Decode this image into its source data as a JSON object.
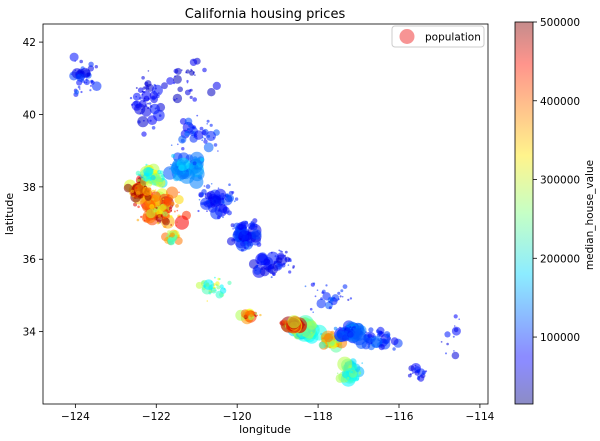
{
  "chart_data": {
    "type": "scatter",
    "title": "California housing prices",
    "xlabel": "longitude",
    "ylabel": "latitude",
    "xlim": [
      -124.8,
      -113.8
    ],
    "ylim": [
      32.0,
      42.5
    ],
    "xticks": [
      -124,
      -122,
      -120,
      -118,
      -116,
      -114
    ],
    "yticks": [
      34,
      36,
      38,
      40,
      42
    ],
    "grid": false,
    "legend": {
      "position": "top-right",
      "entries": [
        "population"
      ],
      "color": "#f47070"
    },
    "colorbar": {
      "label": "median_house_value",
      "range": [
        15000,
        500000
      ],
      "ticks": [
        100000,
        200000,
        300000,
        400000,
        500000
      ],
      "colormap": "jet"
    },
    "regions": [
      {
        "lon": -121.9,
        "lat": 37.4,
        "value": 380000,
        "spread": [
          0.7,
          0.7
        ],
        "count": 110,
        "size": 2.2
      },
      {
        "lon": -122.4,
        "lat": 37.9,
        "value": 420000,
        "spread": [
          0.35,
          0.35
        ],
        "count": 80,
        "size": 2.0
      },
      {
        "lon": -122.1,
        "lat": 38.3,
        "value": 250000,
        "spread": [
          0.5,
          0.4
        ],
        "count": 60,
        "size": 1.8
      },
      {
        "lon": -121.3,
        "lat": 38.5,
        "value": 140000,
        "spread": [
          0.6,
          0.5
        ],
        "count": 80,
        "size": 2.2
      },
      {
        "lon": -120.5,
        "lat": 37.6,
        "value": 90000,
        "spread": [
          0.7,
          0.6
        ],
        "count": 70,
        "size": 1.8
      },
      {
        "lon": -119.8,
        "lat": 36.7,
        "value": 85000,
        "spread": [
          0.5,
          0.5
        ],
        "count": 80,
        "size": 2.0
      },
      {
        "lon": -119.1,
        "lat": 35.9,
        "value": 80000,
        "spread": [
          0.6,
          0.5
        ],
        "count": 60,
        "size": 1.8
      },
      {
        "lon": -122.2,
        "lat": 40.3,
        "value": 70000,
        "spread": [
          0.6,
          1.0
        ],
        "count": 60,
        "size": 1.6
      },
      {
        "lon": -123.8,
        "lat": 41.0,
        "value": 90000,
        "spread": [
          0.5,
          0.8
        ],
        "count": 40,
        "size": 1.4
      },
      {
        "lon": -121.3,
        "lat": 41.0,
        "value": 60000,
        "spread": [
          1.0,
          0.8
        ],
        "count": 35,
        "size": 1.3
      },
      {
        "lon": -121.0,
        "lat": 39.5,
        "value": 100000,
        "spread": [
          0.8,
          0.7
        ],
        "count": 45,
        "size": 1.5
      },
      {
        "lon": -118.3,
        "lat": 34.05,
        "value": 230000,
        "spread": [
          0.45,
          0.3
        ],
        "count": 130,
        "size": 2.6
      },
      {
        "lon": -118.6,
        "lat": 34.2,
        "value": 390000,
        "spread": [
          0.35,
          0.15
        ],
        "count": 60,
        "size": 2.4
      },
      {
        "lon": -117.7,
        "lat": 33.7,
        "value": 300000,
        "spread": [
          0.4,
          0.3
        ],
        "count": 60,
        "size": 2.2
      },
      {
        "lon": -117.2,
        "lat": 32.9,
        "value": 220000,
        "spread": [
          0.35,
          0.35
        ],
        "count": 70,
        "size": 2.2
      },
      {
        "lon": -117.2,
        "lat": 34.0,
        "value": 110000,
        "spread": [
          0.5,
          0.3
        ],
        "count": 70,
        "size": 2.2
      },
      {
        "lon": -116.5,
        "lat": 33.8,
        "value": 100000,
        "spread": [
          0.6,
          0.4
        ],
        "count": 40,
        "size": 1.8
      },
      {
        "lon": -119.7,
        "lat": 34.45,
        "value": 380000,
        "spread": [
          0.4,
          0.1
        ],
        "count": 30,
        "size": 1.8
      },
      {
        "lon": -120.6,
        "lat": 35.2,
        "value": 260000,
        "spread": [
          0.5,
          0.5
        ],
        "count": 35,
        "size": 1.6
      },
      {
        "lon": -121.6,
        "lat": 36.6,
        "value": 300000,
        "spread": [
          0.3,
          0.3
        ],
        "count": 30,
        "size": 1.6
      },
      {
        "lon": -115.5,
        "lat": 32.9,
        "value": 80000,
        "spread": [
          0.4,
          0.3
        ],
        "count": 20,
        "size": 1.4
      },
      {
        "lon": -114.7,
        "lat": 34.0,
        "value": 70000,
        "spread": [
          0.4,
          0.8
        ],
        "count": 12,
        "size": 1.3
      },
      {
        "lon": -117.8,
        "lat": 35.0,
        "value": 90000,
        "spread": [
          0.9,
          0.6
        ],
        "count": 30,
        "size": 1.4
      }
    ]
  }
}
